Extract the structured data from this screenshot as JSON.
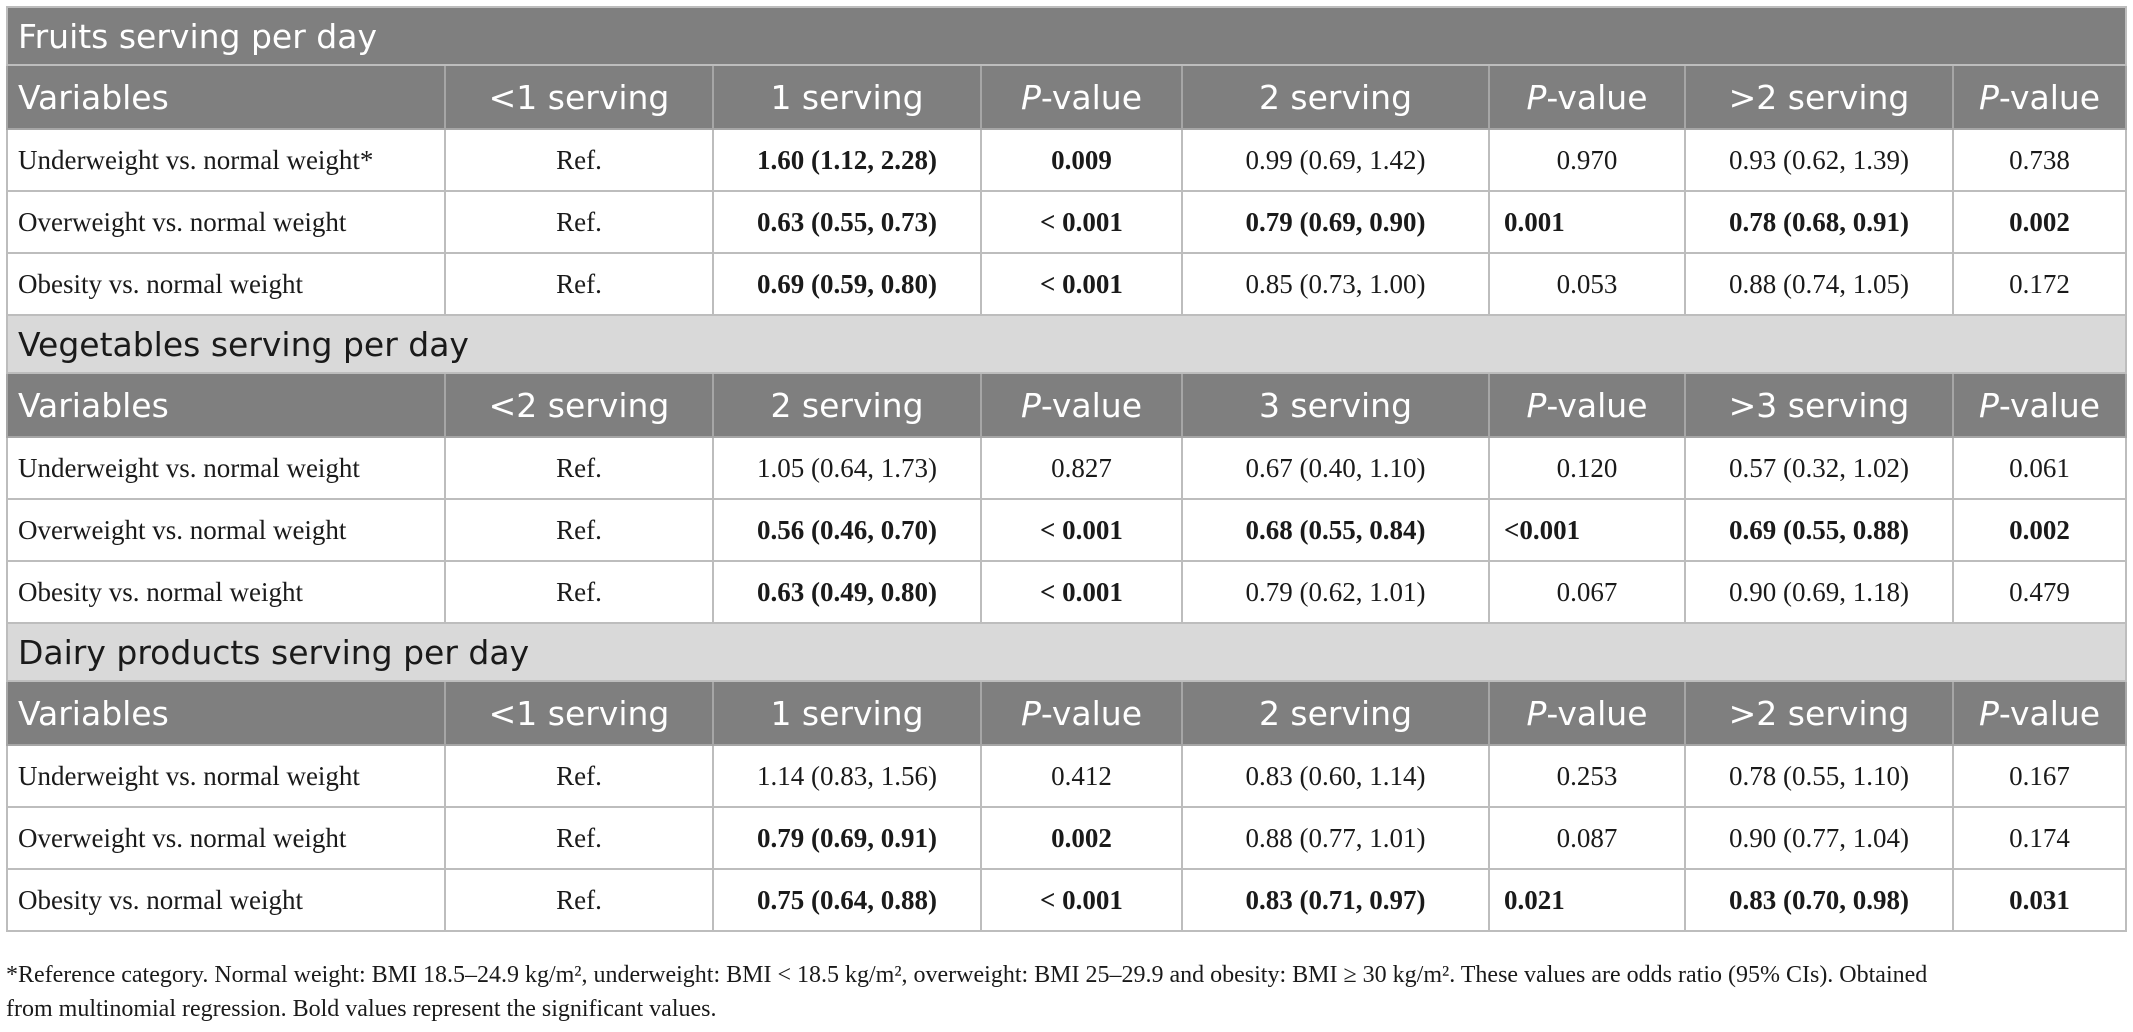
{
  "sections": [
    {
      "title": "Fruits serving per day",
      "headers": [
        "Variables",
        "<1 serving",
        "1 serving",
        "P-value",
        "2 serving",
        "P-value",
        ">2 serving",
        "P-value"
      ],
      "rows": [
        [
          "Underweight vs. normal weight*",
          "Ref.",
          "1.60 (1.12, 2.28)",
          "0.009",
          "0.99 (0.69, 1.42)",
          "0.970",
          "0.93 (0.62, 1.39)",
          "0.738"
        ],
        [
          "Overweight vs. normal weight",
          "Ref.",
          "0.63 (0.55, 0.73)",
          "< 0.001",
          "0.79 (0.69, 0.90)",
          "0.001",
          "0.78 (0.68, 0.91)",
          "0.002"
        ],
        [
          "Obesity vs. normal weight",
          "Ref.",
          "0.69 (0.59, 0.80)",
          "< 0.001",
          "0.85 (0.73, 1.00)",
          "0.053",
          "0.88 (0.74, 1.05)",
          "0.172"
        ]
      ]
    },
    {
      "title": "Vegetables serving per day",
      "headers": [
        "Variables",
        "<2 serving",
        "2 serving",
        "P-value",
        "3 serving",
        "P-value",
        ">3 serving",
        "P-value"
      ],
      "rows": [
        [
          "Underweight vs. normal weight",
          "Ref.",
          "1.05 (0.64, 1.73)",
          "0.827",
          "0.67 (0.40, 1.10)",
          "0.120",
          "0.57 (0.32, 1.02)",
          "0.061"
        ],
        [
          "Overweight vs. normal weight",
          "Ref.",
          "0.56 (0.46, 0.70)",
          "< 0.001",
          "0.68 (0.55, 0.84)",
          "<0.001",
          "0.69 (0.55, 0.88)",
          "0.002"
        ],
        [
          "Obesity vs. normal weight",
          "Ref.",
          "0.63 (0.49, 0.80)",
          "< 0.001",
          "0.79 (0.62, 1.01)",
          "0.067",
          "0.90 (0.69, 1.18)",
          "0.479"
        ]
      ]
    },
    {
      "title": "Dairy products serving per day",
      "headers": [
        "Variables",
        "<1 serving",
        "1 serving",
        "P-value",
        "2 serving",
        "P-value",
        ">2 serving",
        "P-value"
      ],
      "rows": [
        [
          "Underweight vs. normal weight",
          "Ref.",
          "1.14 (0.83, 1.56)",
          "0.412",
          "0.83 (0.60, 1.14)",
          "0.253",
          "0.78 (0.55, 1.10)",
          "0.167"
        ],
        [
          "Overweight vs. normal weight",
          "Ref.",
          "0.79 (0.69, 0.91)",
          "0.002",
          "0.88 (0.77, 1.01)",
          "0.087",
          "0.90 (0.77, 1.04)",
          "0.174"
        ],
        [
          "Obesity vs. normal weight",
          "Ref.",
          "0.75 (0.64, 0.88)",
          "< 0.001",
          "0.83 (0.71, 0.97)",
          "0.021",
          "0.83 (0.70, 0.98)",
          "0.031"
        ]
      ]
    }
  ],
  "footnote": {
    "line1": "*Reference category. Normal weight: BMI 18.5–24.9 kg/m², underweight: BMI < 18.5 kg/m², overweight: BMI 25–29.9 and obesity: BMI ≥ 30 kg/m². These values are odds ratio (95% CIs). Obtained",
    "line2": "from multinomial regression. Bold values represent the significant values."
  }
}
